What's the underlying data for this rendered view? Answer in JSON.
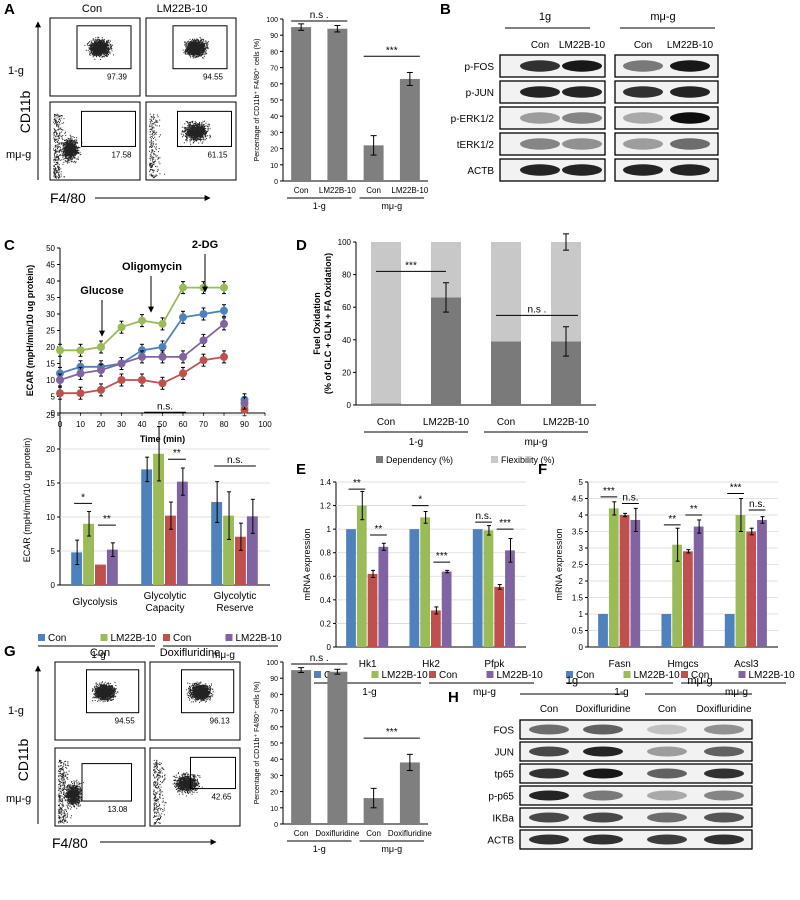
{
  "panels": {
    "A": {
      "letter": "A",
      "label_con": "Con",
      "label_lm": "LM22B-10",
      "row1": "1-g",
      "row2": "mμ-g",
      "ylabel": "CD11b",
      "xlabel": "F4/80",
      "gates": [
        "97.39",
        "94.55",
        "17.58",
        "61.15"
      ]
    },
    "B": {
      "letter": "B",
      "group1": "1g",
      "group2": "mμ-g",
      "lane1": "Con",
      "lane2": "LM22B-10",
      "rows": [
        "p-FOS",
        "p-JUN",
        "p-ERK1/2",
        "tERK1/2",
        "ACTB"
      ]
    },
    "C": {
      "letter": "C",
      "annot1": "Glucose",
      "annot2": "Oligomycin",
      "annot3": "2-DG"
    },
    "D": {
      "letter": "D"
    },
    "E": {
      "letter": "E"
    },
    "F": {
      "letter": "F"
    },
    "G": {
      "letter": "G",
      "label_con": "Con",
      "label_doxi": "Doxifluridine",
      "row1": "1-g",
      "row2": "mμ-g",
      "ylabel": "CD11b",
      "xlabel": "F4/80",
      "gates": [
        "94.55",
        "96.13",
        "13.08",
        "42.65"
      ]
    },
    "H": {
      "letter": "H",
      "group1": "1g",
      "group2": "mμ-g",
      "lane1": "Con",
      "lane2": "Doxifluridine",
      "rows": [
        "FOS",
        "JUN",
        "tp65",
        "p-p65",
        "IKBa",
        "ACTB"
      ]
    }
  },
  "colors": {
    "con": "#4f81bd",
    "lm": "#9bbb59",
    "con_mu": "#c0504d",
    "lm_mu": "#8064a2",
    "gray": "#7f7f7f",
    "light": "#c8c8c8",
    "dark": "#7a7a7a"
  },
  "chart_data": [
    {
      "id": "A_bar",
      "type": "bar",
      "ylabel": "Percentage of CD11b⁺ F4/80⁺ cells (%)",
      "ylim": [
        0,
        100
      ],
      "yticks": [
        0,
        10,
        20,
        30,
        40,
        50,
        60,
        70,
        80,
        90,
        100
      ],
      "categories": [
        "Con",
        "LM22B-10",
        "Con",
        "LM22B-10"
      ],
      "groups": [
        "1-g",
        "mμ-g"
      ],
      "values": [
        95,
        94,
        22,
        63
      ],
      "errors": [
        2,
        2,
        6,
        4
      ],
      "sig": [
        "n.s .",
        "***"
      ]
    },
    {
      "id": "C_line",
      "type": "line",
      "xlabel": "Time (min)",
      "ylabel": "ECAR (mpH/min/10 ug protein)",
      "xlim": [
        0,
        100
      ],
      "ylim": [
        0,
        50
      ],
      "xticks": [
        0,
        10,
        20,
        30,
        40,
        50,
        60,
        70,
        80,
        90,
        100
      ],
      "yticks": [
        0,
        5,
        10,
        15,
        20,
        25,
        30,
        35,
        40,
        45,
        50
      ],
      "x": [
        0,
        10,
        20,
        30,
        40,
        50,
        60,
        70,
        80,
        90
      ],
      "series": [
        {
          "name": "1-g Con",
          "color": "#4f81bd",
          "values": [
            12,
            14,
            14,
            15,
            19,
            20,
            29,
            30,
            31,
            4
          ]
        },
        {
          "name": "1-g LM22B-10",
          "color": "#9bbb59",
          "values": [
            19,
            19,
            20,
            26,
            28,
            27,
            38,
            38,
            38,
            2
          ]
        },
        {
          "name": "mμ-g Con",
          "color": "#c0504d",
          "values": [
            6,
            6,
            7,
            10,
            10,
            9,
            12,
            16,
            17,
            1
          ]
        },
        {
          "name": "mμ-g LM22B-10",
          "color": "#8064a2",
          "values": [
            10,
            12,
            13,
            15,
            17,
            17,
            17,
            22,
            27,
            3
          ]
        }
      ]
    },
    {
      "id": "C_bar",
      "type": "bar",
      "ylabel": "ECAR (mpH/min/10 ug protein)",
      "ylim": [
        0,
        25
      ],
      "yticks": [
        0,
        5,
        10,
        15,
        20,
        25
      ],
      "categories": [
        "Glycolysis",
        "Glycolytic Capacity",
        "Glycolytic Reserve"
      ],
      "series": [
        {
          "name": "Con",
          "group": "1-g",
          "color": "#4f81bd",
          "values": [
            4.8,
            17,
            12.2
          ],
          "errors": [
            1.8,
            1.8,
            3
          ]
        },
        {
          "name": "LM22B-10",
          "group": "1-g",
          "color": "#9bbb59",
          "values": [
            9,
            19.3,
            10.2
          ],
          "errors": [
            1.8,
            4,
            3.5
          ]
        },
        {
          "name": "Con",
          "group": "mμ-g",
          "color": "#c0504d",
          "values": [
            3,
            10.2,
            7.1
          ],
          "errors": [
            0,
            2,
            2
          ]
        },
        {
          "name": "LM22B-10",
          "group": "mμ-g",
          "color": "#8064a2",
          "values": [
            5.2,
            15.2,
            10.1
          ],
          "errors": [
            1,
            2,
            2.5
          ]
        }
      ],
      "sig": [
        "*",
        "**",
        "n.s.",
        "**",
        "n.s."
      ],
      "legend": [
        "Con",
        "LM22B-10",
        "Con",
        "LM22B-10"
      ],
      "legend_groups": [
        "1-g",
        "mμ-g"
      ]
    },
    {
      "id": "D_bar",
      "type": "bar",
      "stacked": true,
      "ylabel_line1": "Fuel Oxidation",
      "ylabel_line2": "(% of GLC + GLN + FA Oxidation)",
      "ylim": [
        0,
        100
      ],
      "yticks": [
        0,
        20,
        40,
        60,
        80,
        100
      ],
      "categories": [
        "Con",
        "LM22B-10",
        "Con",
        "LM22B-10"
      ],
      "groups": [
        "1-g",
        "mμ-g"
      ],
      "series": [
        {
          "name": "Dependency (%)",
          "color": "#7a7a7a",
          "values": [
            1,
            66,
            39,
            39
          ],
          "errors": [
            0,
            9,
            0,
            9
          ]
        },
        {
          "name": "Flexibility (%)",
          "color": "#c8c8c8",
          "values": [
            99,
            34,
            61,
            61
          ],
          "errors": [
            0,
            0,
            0,
            5
          ]
        }
      ],
      "sig": [
        "***",
        "n.s ."
      ]
    },
    {
      "id": "E_bar",
      "type": "bar",
      "ylabel": "mRNA expression",
      "ylim": [
        0,
        1.4
      ],
      "yticks": [
        "0",
        "0.2",
        "0.4",
        "0.6",
        "0.8",
        "1",
        "1.2",
        "1.4"
      ],
      "categories": [
        "Hk1",
        "Hk2",
        "Pfpk"
      ],
      "series": [
        {
          "name": "Con",
          "group": "1-g",
          "color": "#4f81bd",
          "values": [
            1,
            1,
            1
          ],
          "errors": [
            0,
            0,
            0
          ]
        },
        {
          "name": "LM22B-10",
          "group": "1-g",
          "color": "#9bbb59",
          "values": [
            1.2,
            1.1,
            0.99
          ],
          "errors": [
            0.12,
            0.05,
            0.04
          ]
        },
        {
          "name": "Con",
          "group": "mμ-g",
          "color": "#c0504d",
          "values": [
            0.62,
            0.31,
            0.51
          ],
          "errors": [
            0.03,
            0.03,
            0.02
          ]
        },
        {
          "name": "LM22B-10",
          "group": "mμ-g",
          "color": "#8064a2",
          "values": [
            0.85,
            0.64,
            0.82
          ],
          "errors": [
            0.03,
            0.01,
            0.1
          ]
        }
      ],
      "sig": [
        "**",
        "**",
        "*",
        "***",
        "n.s.",
        "***"
      ],
      "legend": [
        "Con",
        "LM22B-10",
        "Con",
        "LM22B-10"
      ],
      "legend_groups": [
        "1-g",
        "mμ-g"
      ]
    },
    {
      "id": "F_bar",
      "type": "bar",
      "ylabel": "mRNA expression",
      "ylim": [
        0,
        5
      ],
      "yticks": [
        "0",
        "0.5",
        "1",
        "1.5",
        "2",
        "2.5",
        "3",
        "3.5",
        "4",
        "4.5",
        "5"
      ],
      "categories": [
        "Fasn",
        "Hmgcs",
        "Acsl3"
      ],
      "series": [
        {
          "name": "Con",
          "group": "1-g",
          "color": "#4f81bd",
          "values": [
            1,
            1,
            1
          ],
          "errors": [
            0,
            0,
            0
          ]
        },
        {
          "name": "LM22B-10",
          "group": "1-g",
          "color": "#9bbb59",
          "values": [
            4.2,
            3.1,
            4
          ],
          "errors": [
            0.2,
            0.5,
            0.5
          ]
        },
        {
          "name": "Con",
          "group": "mμ-g",
          "color": "#c0504d",
          "values": [
            4,
            2.9,
            3.5
          ],
          "errors": [
            0.05,
            0.05,
            0.1
          ]
        },
        {
          "name": "LM22B-10",
          "group": "mμ-g",
          "color": "#8064a2",
          "values": [
            3.85,
            3.65,
            3.85
          ],
          "errors": [
            0.35,
            0.2,
            0.1
          ]
        }
      ],
      "sig": [
        "***",
        "n.s.",
        "**",
        "**",
        "***",
        "n.s."
      ],
      "legend": [
        "Con",
        "LM22B-10",
        "Con",
        "LM22B-10"
      ],
      "legend_groups": [
        "1-g",
        "mμ-g"
      ]
    },
    {
      "id": "G_bar",
      "type": "bar",
      "ylabel": "Percentage of CD11b⁺ F4/80⁺ cells (%)",
      "ylim": [
        0,
        100
      ],
      "yticks": [
        0,
        10,
        20,
        30,
        40,
        50,
        60,
        70,
        80,
        90,
        100
      ],
      "categories": [
        "Con",
        "Doxifluridine",
        "Con",
        "Doxifluridine"
      ],
      "groups": [
        "1-g",
        "mμ-g"
      ],
      "values": [
        95,
        94,
        16,
        38
      ],
      "errors": [
        1.5,
        1.5,
        6,
        5
      ],
      "sig": [
        "n.s .",
        "***"
      ]
    }
  ]
}
